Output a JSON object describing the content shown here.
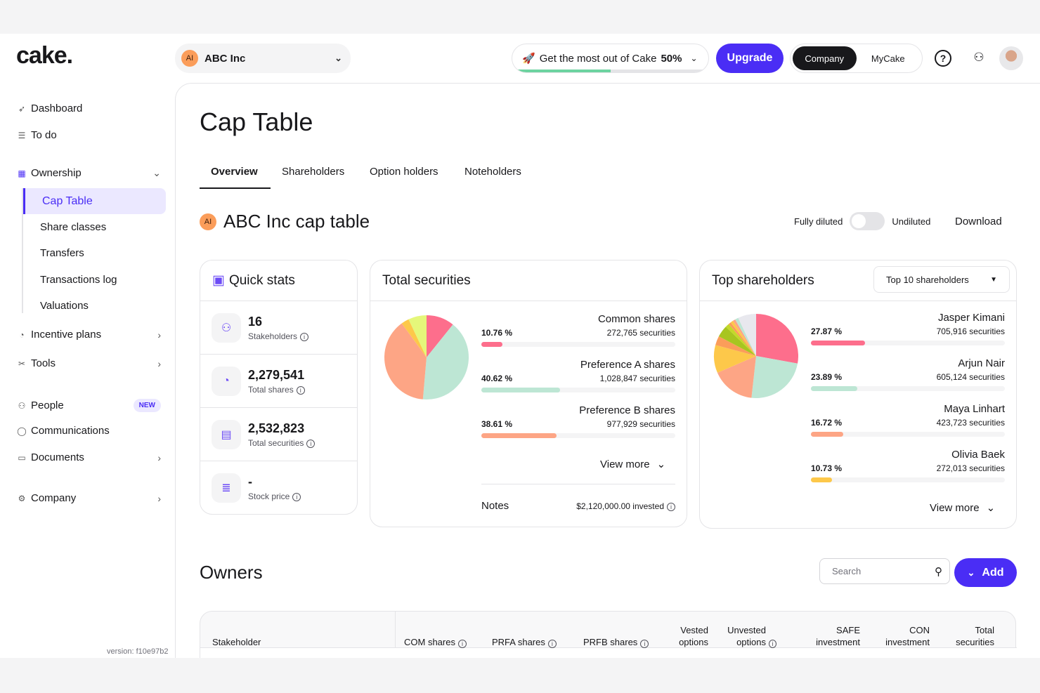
{
  "brand": {
    "logo": "cake."
  },
  "header": {
    "company": {
      "initials": "AI",
      "name": "ABC Inc"
    },
    "promo": {
      "label": "Get the most out of Cake",
      "percent_label": "50%",
      "progress": 0.5
    },
    "upgrade": "Upgrade",
    "toggle": {
      "options": [
        "Company",
        "MyCake"
      ],
      "selected": "Company"
    },
    "icons": [
      "help-icon",
      "add-user-icon",
      "avatar"
    ]
  },
  "sidebar": {
    "items": [
      {
        "label": "Dashboard",
        "icon": "rocket-icon"
      },
      {
        "label": "To do",
        "icon": "checklist-icon"
      },
      {
        "label": "Ownership",
        "icon": "table-icon",
        "expanded": true
      },
      {
        "label": "Incentive plans",
        "icon": "pie-icon"
      },
      {
        "label": "Tools",
        "icon": "tools-icon"
      },
      {
        "label": "People",
        "icon": "people-icon",
        "badge": "NEW"
      },
      {
        "label": "Communications",
        "icon": "chat-icon"
      },
      {
        "label": "Documents",
        "icon": "folder-icon"
      },
      {
        "label": "Company",
        "icon": "gear-icon"
      }
    ],
    "ownership_sub": [
      "Cap Table",
      "Share classes",
      "Transfers",
      "Transactions log",
      "Valuations"
    ],
    "active": "Cap Table",
    "version": "version: f10e97b2"
  },
  "page": {
    "title": "Cap Table",
    "tabs": [
      "Overview",
      "Shareholders",
      "Option holders",
      "Noteholders"
    ],
    "active_tab": "Overview",
    "section": {
      "initials": "AI",
      "title": "ABC Inc cap table"
    },
    "fully_diluted": "Fully diluted",
    "undiluted": "Undiluted",
    "diluted_on": false,
    "download": "Download"
  },
  "quick_stats": {
    "title": "Quick stats",
    "items": [
      {
        "value": "16",
        "label": "Stakeholders",
        "icon": "users-icon"
      },
      {
        "value": "2,279,541",
        "label": "Total shares",
        "icon": "pie-chart-icon"
      },
      {
        "value": "2,532,823",
        "label": "Total securities",
        "icon": "report-icon"
      },
      {
        "value": "-",
        "label": "Stock price",
        "icon": "database-icon"
      }
    ]
  },
  "total_securities": {
    "title": "Total securities",
    "view_more": "View more",
    "notes_label": "Notes",
    "notes_value": "$2,120,000.00 invested"
  },
  "top_shareholders": {
    "title": "Top shareholders",
    "filter": "Top 10 shareholders",
    "view_more": "View more"
  },
  "chart_data": [
    {
      "type": "pie",
      "title": "Total securities",
      "slices": [
        {
          "name": "Common shares",
          "pct": 10.76,
          "pct_label": "10.76 %",
          "securities": "272,765 securities",
          "color": "#fd6e8c"
        },
        {
          "name": "Preference A shares",
          "pct": 40.62,
          "pct_label": "40.62 %",
          "securities": "1,028,847 securities",
          "color": "#bde6d4"
        },
        {
          "name": "Preference B shares",
          "pct": 38.61,
          "pct_label": "38.61 %",
          "securities": "977,929 securities",
          "color": "#fda585"
        },
        {
          "pct": 3.0,
          "color": "#fdc84a"
        },
        {
          "pct": 7.01,
          "color": "#e5f77a"
        }
      ]
    },
    {
      "type": "pie",
      "title": "Top shareholders",
      "slices": [
        {
          "name": "Jasper Kimani",
          "pct": 27.87,
          "pct_label": "27.87 %",
          "securities": "705,916 securities",
          "color": "#fd6e8c"
        },
        {
          "name": "Arjun Nair",
          "pct": 23.89,
          "pct_label": "23.89 %",
          "securities": "605,124 securities",
          "color": "#bde6d4"
        },
        {
          "name": "Maya Linhart",
          "pct": 16.72,
          "pct_label": "16.72 %",
          "securities": "423,723 securities",
          "color": "#fda585"
        },
        {
          "name": "Olivia Baek",
          "pct": 10.73,
          "pct_label": "10.73 %",
          "securities": "272,013 securities",
          "color": "#fdc84a"
        },
        {
          "pct": 3.5,
          "color": "#fb9d5a"
        },
        {
          "pct": 4.5,
          "color": "#a8c520"
        },
        {
          "pct": 1.5,
          "color": "#c4d82a"
        },
        {
          "pct": 1.0,
          "color": "#fb9d5a"
        },
        {
          "pct": 1.0,
          "color": "#fdc84a"
        },
        {
          "pct": 1.0,
          "color": "#fda585"
        },
        {
          "pct": 1.3,
          "color": "#bde6d4"
        },
        {
          "pct": 7.0,
          "color": "#e8e8ee"
        }
      ]
    }
  ],
  "owners": {
    "title": "Owners",
    "search_placeholder": "Search",
    "add": "Add",
    "columns": [
      "Stakeholder",
      "COM shares",
      "PRFA shares",
      "PRFB shares",
      "Vested options",
      "Unvested options",
      "SAFE investment",
      "CON investment",
      "Total securities"
    ]
  },
  "colors": {
    "accent": "#4a2df5",
    "accent_light": "#ebe8ff",
    "progress": "#6dd3a0"
  }
}
